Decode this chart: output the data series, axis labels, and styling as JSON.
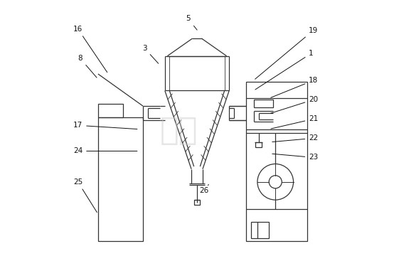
{
  "background_color": "#ffffff",
  "line_color": "#333333",
  "label_color": "#111111",
  "fig_width": 5.54,
  "fig_height": 3.67,
  "labels_pos": {
    "16": [
      0.055,
      0.895,
      0.155,
      0.72
    ],
    "8": [
      0.055,
      0.78,
      0.115,
      0.7
    ],
    "3": [
      0.305,
      0.82,
      0.355,
      0.755
    ],
    "5": [
      0.475,
      0.935,
      0.505,
      0.885
    ],
    "19": [
      0.935,
      0.89,
      0.72,
      0.695
    ],
    "1": [
      0.935,
      0.8,
      0.72,
      0.655
    ],
    "18": [
      0.935,
      0.695,
      0.78,
      0.625
    ],
    "20": [
      0.935,
      0.62,
      0.78,
      0.565
    ],
    "21": [
      0.935,
      0.545,
      0.78,
      0.505
    ],
    "22": [
      0.935,
      0.47,
      0.785,
      0.455
    ],
    "23": [
      0.935,
      0.395,
      0.785,
      0.41
    ],
    "17": [
      0.055,
      0.52,
      0.275,
      0.505
    ],
    "24": [
      0.055,
      0.42,
      0.275,
      0.42
    ],
    "25": [
      0.055,
      0.3,
      0.115,
      0.175
    ],
    "26": [
      0.51,
      0.265,
      0.545,
      0.29
    ]
  }
}
